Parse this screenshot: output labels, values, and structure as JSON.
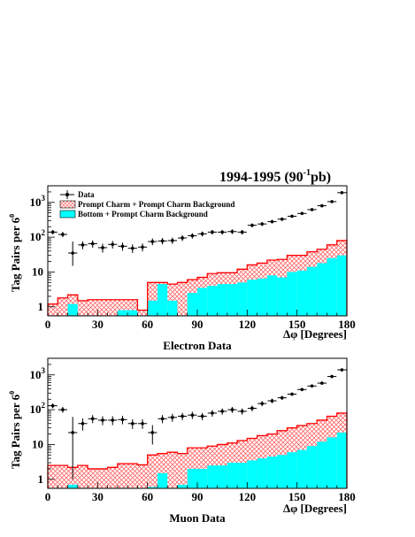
{
  "header": {
    "title": "1994-1995 (90",
    "title_exp": "-1",
    "title_tail": "pb)"
  },
  "ylabel": {
    "main": "Tag Pairs per 6",
    "exp": "0"
  },
  "xlabel": "Δφ [Degrees]",
  "legend": {
    "data": "Data",
    "charm": "Prompt Charm + Prompt Charm Background",
    "bottom": "Bottom + Prompt Charm Background"
  },
  "colors": {
    "bottom": "#00ffff",
    "charm_hatch": "#ff6666",
    "outline": "#ff0000",
    "data": "#000000"
  },
  "chart_data": [
    {
      "type": "bar",
      "title": "Electron Data",
      "xlabel": "Δφ [Degrees]",
      "ylabel": "Tag Pairs per 6°",
      "xlim": [
        0,
        180
      ],
      "ylim": [
        0.55,
        3000
      ],
      "yscale": "log",
      "xticks": [
        0,
        30,
        60,
        90,
        120,
        150,
        180
      ],
      "yticks": [
        {
          "v": 1,
          "base": "1",
          "exp": ""
        },
        {
          "v": 10,
          "base": "10",
          "exp": ""
        },
        {
          "v": 100,
          "base": "10",
          "exp": "2"
        },
        {
          "v": 1000,
          "base": "10",
          "exp": "3"
        }
      ],
      "bin_edges": [
        0,
        6,
        12,
        18,
        24,
        30,
        36,
        42,
        48,
        54,
        60,
        66,
        72,
        78,
        84,
        90,
        96,
        102,
        108,
        114,
        120,
        126,
        132,
        138,
        144,
        150,
        156,
        162,
        168,
        174,
        180
      ],
      "series": [
        {
          "name": "Data",
          "kind": "points",
          "values": [
            140,
            120,
            35,
            60,
            65,
            50,
            62,
            55,
            48,
            52,
            75,
            78,
            80,
            95,
            110,
            125,
            140,
            140,
            145,
            140,
            220,
            240,
            280,
            330,
            400,
            480,
            620,
            800,
            1050,
            1900
          ],
          "err_low": [
            20,
            20,
            20,
            15,
            15,
            14,
            15,
            14,
            13,
            13,
            16,
            16,
            16,
            18,
            19,
            20,
            21,
            21,
            22,
            21,
            28,
            30,
            32,
            35,
            38,
            42,
            48,
            55,
            62,
            80
          ],
          "err_high": [
            22,
            22,
            40,
            16,
            16,
            15,
            16,
            15,
            14,
            14,
            17,
            17,
            17,
            19,
            20,
            21,
            22,
            22,
            23,
            22,
            30,
            32,
            34,
            37,
            40,
            44,
            50,
            57,
            65,
            85
          ]
        },
        {
          "name": "Prompt Charm + Prompt Charm Background",
          "kind": "hatched",
          "values": [
            1.2,
            1.8,
            2.2,
            1.5,
            1.6,
            1.6,
            1.6,
            1.6,
            1.6,
            0.8,
            5,
            5,
            4.5,
            5,
            6,
            7,
            9,
            9.5,
            9.5,
            12,
            16,
            18,
            22,
            23,
            30,
            30,
            38,
            45,
            60,
            80
          ]
        },
        {
          "name": "Bottom + Prompt Charm Background",
          "kind": "filled",
          "values": [
            0.4,
            0.4,
            1.2,
            0.4,
            0.4,
            0.4,
            0.4,
            0.8,
            0.8,
            0.4,
            1.5,
            4.5,
            1.5,
            0.4,
            2.5,
            3.5,
            4,
            4.5,
            4.5,
            5,
            6,
            6.5,
            8,
            7,
            10,
            11,
            14,
            18,
            25,
            30
          ]
        }
      ]
    },
    {
      "type": "bar",
      "title": "Muon Data",
      "xlabel": "Δφ [Degrees]",
      "ylabel": "Tag Pairs per 6°",
      "xlim": [
        0,
        180
      ],
      "ylim": [
        0.55,
        3000
      ],
      "yscale": "log",
      "xticks": [
        0,
        30,
        60,
        90,
        120,
        150,
        180
      ],
      "yticks": [
        {
          "v": 1,
          "base": "1",
          "exp": ""
        },
        {
          "v": 10,
          "base": "10",
          "exp": ""
        },
        {
          "v": 100,
          "base": "10",
          "exp": "2"
        },
        {
          "v": 1000,
          "base": "10",
          "exp": "3"
        }
      ],
      "bin_edges": [
        0,
        6,
        12,
        18,
        24,
        30,
        36,
        42,
        48,
        54,
        60,
        66,
        72,
        78,
        84,
        90,
        96,
        102,
        108,
        114,
        120,
        126,
        132,
        138,
        144,
        150,
        156,
        162,
        168,
        174,
        180
      ],
      "series": [
        {
          "name": "Data",
          "kind": "points",
          "values": [
            130,
            100,
            22,
            40,
            55,
            50,
            50,
            52,
            40,
            40,
            22,
            55,
            60,
            65,
            70,
            65,
            80,
            90,
            100,
            90,
            110,
            150,
            180,
            220,
            280,
            380,
            480,
            580,
            900,
            1400
          ],
          "err_low": [
            20,
            18,
            21,
            15,
            14,
            14,
            14,
            14,
            12,
            12,
            12,
            14,
            15,
            15,
            16,
            15,
            17,
            18,
            19,
            18,
            20,
            24,
            26,
            28,
            32,
            38,
            42,
            46,
            58,
            70
          ],
          "err_high": [
            22,
            20,
            40,
            16,
            15,
            15,
            15,
            15,
            13,
            13,
            14,
            15,
            16,
            16,
            17,
            16,
            18,
            19,
            20,
            19,
            21,
            25,
            27,
            30,
            34,
            40,
            44,
            48,
            60,
            75
          ]
        },
        {
          "name": "Prompt Charm + Prompt Charm Background",
          "kind": "hatched",
          "values": [
            2.5,
            2.5,
            2.2,
            2.5,
            2,
            2,
            2.2,
            2.8,
            2.8,
            2.6,
            5,
            5.5,
            6,
            5.5,
            8,
            8,
            9,
            10,
            11,
            13,
            15,
            18,
            20,
            25,
            30,
            35,
            40,
            50,
            65,
            80
          ]
        },
        {
          "name": "Bottom + Prompt Charm Background",
          "kind": "filled",
          "values": [
            0.4,
            0.4,
            0.7,
            0.4,
            0.4,
            0.4,
            0.4,
            0.4,
            0.4,
            0.4,
            0.6,
            1.5,
            0.4,
            0.7,
            2,
            2,
            2.5,
            2.5,
            3,
            3,
            3.5,
            4,
            4.5,
            5,
            6,
            7,
            9,
            12,
            16,
            22
          ]
        }
      ]
    }
  ]
}
